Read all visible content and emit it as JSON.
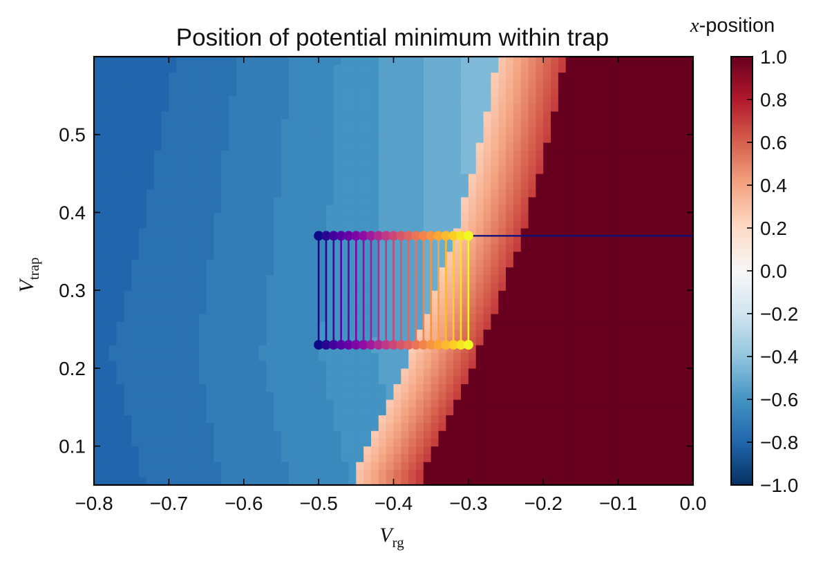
{
  "chart_data": {
    "type": "heatmap",
    "title": "Position of potential minimum within trap",
    "xlabel": {
      "main": "V",
      "sub": "rg"
    },
    "ylabel": {
      "main": "V",
      "sub": "trap"
    },
    "xlim": [
      -0.8,
      0.0
    ],
    "ylim": [
      0.05,
      0.6
    ],
    "xticks": [
      -0.8,
      -0.7,
      -0.6,
      -0.5,
      -0.4,
      -0.3,
      -0.2,
      -0.1,
      0.0
    ],
    "xtick_labels": [
      "−0.8",
      "−0.7",
      "−0.6",
      "−0.5",
      "−0.4",
      "−0.3",
      "−0.2",
      "−0.1",
      "0.0"
    ],
    "yticks": [
      0.1,
      0.2,
      0.3,
      0.4,
      0.5
    ],
    "ytick_labels": [
      "0.1",
      "0.2",
      "0.3",
      "0.4",
      "0.5"
    ],
    "colorbar": {
      "label_math": "x",
      "label_text": "-position",
      "range": [
        -1.0,
        1.0
      ],
      "colormap": "RdBu_r",
      "ticks": [
        -1.0,
        -0.8,
        -0.6,
        -0.4,
        -0.2,
        0.0,
        0.2,
        0.4,
        0.6,
        0.8,
        1.0
      ],
      "tick_labels": [
        "−1.0",
        "−0.8",
        "−0.6",
        "−0.4",
        "−0.2",
        "0.0",
        "0.2",
        "0.4",
        "0.6",
        "0.8",
        "1.0"
      ]
    },
    "overlay_sweep": {
      "x_values": [
        -0.5,
        -0.49,
        -0.48,
        -0.47,
        -0.46,
        -0.45,
        -0.44,
        -0.43,
        -0.42,
        -0.41,
        -0.4,
        -0.39,
        -0.38,
        -0.37,
        -0.36,
        -0.35,
        -0.34,
        -0.33,
        -0.32,
        -0.31,
        -0.3
      ],
      "y_low": 0.23,
      "y_high": 0.37,
      "colormap": "plasma"
    },
    "reference_line": {
      "y": 0.37,
      "x_range": [
        -0.3,
        0.0
      ],
      "color": "#11117a"
    },
    "grid": false,
    "colors": {
      "red_region": "#67001f",
      "sweep_start": "#0d0887",
      "sweep_end": "#f0f921"
    }
  }
}
